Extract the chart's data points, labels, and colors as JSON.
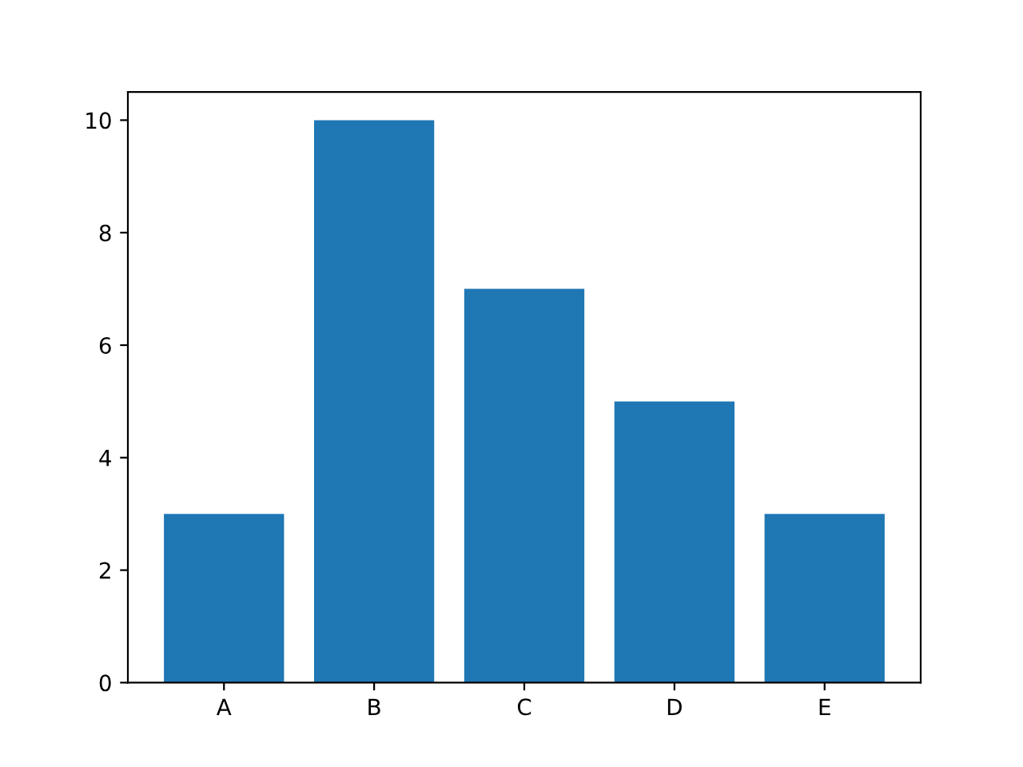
{
  "chart_data": {
    "type": "bar",
    "categories": [
      "A",
      "B",
      "C",
      "D",
      "E"
    ],
    "values": [
      3,
      10,
      7,
      5,
      3
    ],
    "color": "#1f77b4",
    "ylim": [
      0,
      10.5
    ],
    "yticks": [
      0,
      2,
      4,
      6,
      8,
      10
    ],
    "grid": false,
    "legend": false
  }
}
